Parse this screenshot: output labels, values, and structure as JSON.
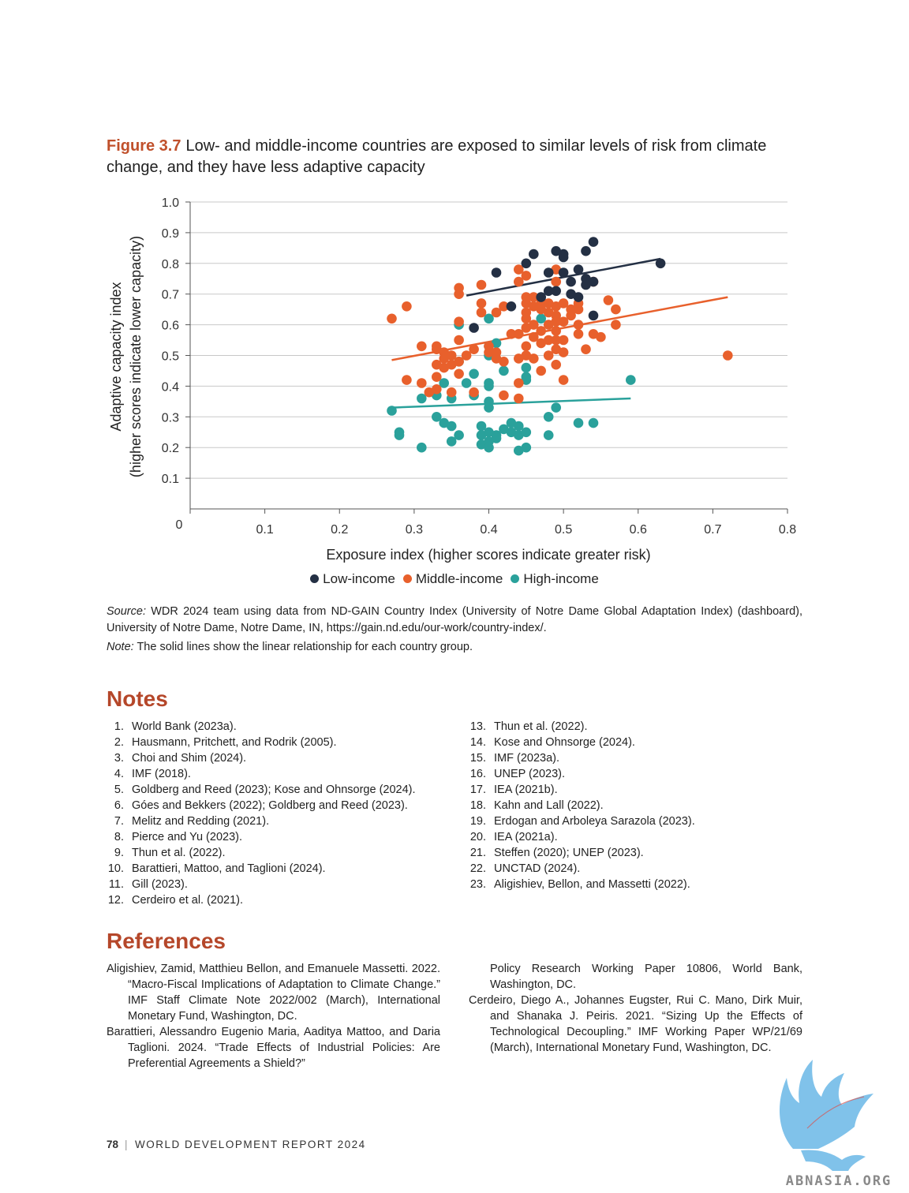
{
  "figure": {
    "label": "Figure 3.7",
    "title": "Low- and middle-income countries are exposed to similar levels of risk from climate change, and they have less adaptive capacity"
  },
  "chart_data": {
    "type": "scatter",
    "xlabel": "Exposure index (higher scores indicate greater risk)",
    "ylabel_line1": "Adaptive capacity index",
    "ylabel_line2": "(higher scores indicate lower capacity)",
    "xlim": [
      0,
      0.8
    ],
    "ylim": [
      0,
      1.0
    ],
    "x_ticks": [
      "0.1",
      "0.2",
      "0.3",
      "0.4",
      "0.5",
      "0.6",
      "0.7",
      "0.8"
    ],
    "y_ticks": [
      "0.1",
      "0.2",
      "0.3",
      "0.4",
      "0.5",
      "0.6",
      "0.7",
      "0.8",
      "0.9",
      "1.0"
    ],
    "origin_label": "0",
    "grid": "horizontal",
    "legend_position": "bottom",
    "series": [
      {
        "name": "Low-income",
        "color": "#243044",
        "trend": [
          [
            0.37,
            0.695
          ],
          [
            0.63,
            0.815
          ]
        ],
        "points": [
          [
            0.38,
            0.59
          ],
          [
            0.41,
            0.77
          ],
          [
            0.43,
            0.66
          ],
          [
            0.45,
            0.8
          ],
          [
            0.46,
            0.83
          ],
          [
            0.47,
            0.69
          ],
          [
            0.48,
            0.77
          ],
          [
            0.48,
            0.71
          ],
          [
            0.49,
            0.84
          ],
          [
            0.49,
            0.71
          ],
          [
            0.5,
            0.83
          ],
          [
            0.5,
            0.82
          ],
          [
            0.5,
            0.77
          ],
          [
            0.51,
            0.74
          ],
          [
            0.51,
            0.7
          ],
          [
            0.52,
            0.78
          ],
          [
            0.52,
            0.69
          ],
          [
            0.53,
            0.84
          ],
          [
            0.53,
            0.75
          ],
          [
            0.53,
            0.73
          ],
          [
            0.54,
            0.87
          ],
          [
            0.54,
            0.74
          ],
          [
            0.54,
            0.63
          ],
          [
            0.63,
            0.8
          ]
        ]
      },
      {
        "name": "Middle-income",
        "color": "#e8602c",
        "trend": [
          [
            0.27,
            0.485
          ],
          [
            0.72,
            0.69
          ]
        ],
        "points": [
          [
            0.27,
            0.62
          ],
          [
            0.29,
            0.66
          ],
          [
            0.29,
            0.42
          ],
          [
            0.31,
            0.41
          ],
          [
            0.31,
            0.53
          ],
          [
            0.32,
            0.38
          ],
          [
            0.33,
            0.53
          ],
          [
            0.33,
            0.52
          ],
          [
            0.33,
            0.47
          ],
          [
            0.33,
            0.43
          ],
          [
            0.33,
            0.39
          ],
          [
            0.34,
            0.51
          ],
          [
            0.34,
            0.49
          ],
          [
            0.34,
            0.46
          ],
          [
            0.35,
            0.5
          ],
          [
            0.35,
            0.47
          ],
          [
            0.35,
            0.38
          ],
          [
            0.36,
            0.72
          ],
          [
            0.36,
            0.7
          ],
          [
            0.36,
            0.61
          ],
          [
            0.36,
            0.55
          ],
          [
            0.36,
            0.48
          ],
          [
            0.36,
            0.44
          ],
          [
            0.37,
            0.5
          ],
          [
            0.38,
            0.52
          ],
          [
            0.38,
            0.38
          ],
          [
            0.39,
            0.73
          ],
          [
            0.39,
            0.67
          ],
          [
            0.39,
            0.64
          ],
          [
            0.4,
            0.53
          ],
          [
            0.4,
            0.51
          ],
          [
            0.41,
            0.64
          ],
          [
            0.41,
            0.51
          ],
          [
            0.41,
            0.49
          ],
          [
            0.42,
            0.66
          ],
          [
            0.42,
            0.48
          ],
          [
            0.42,
            0.37
          ],
          [
            0.43,
            0.57
          ],
          [
            0.44,
            0.78
          ],
          [
            0.44,
            0.74
          ],
          [
            0.44,
            0.57
          ],
          [
            0.44,
            0.49
          ],
          [
            0.44,
            0.41
          ],
          [
            0.44,
            0.36
          ],
          [
            0.45,
            0.76
          ],
          [
            0.45,
            0.69
          ],
          [
            0.45,
            0.67
          ],
          [
            0.45,
            0.64
          ],
          [
            0.45,
            0.62
          ],
          [
            0.45,
            0.59
          ],
          [
            0.45,
            0.53
          ],
          [
            0.45,
            0.5
          ],
          [
            0.46,
            0.69
          ],
          [
            0.46,
            0.66
          ],
          [
            0.46,
            0.6
          ],
          [
            0.46,
            0.56
          ],
          [
            0.46,
            0.49
          ],
          [
            0.47,
            0.67
          ],
          [
            0.47,
            0.65
          ],
          [
            0.47,
            0.58
          ],
          [
            0.47,
            0.54
          ],
          [
            0.47,
            0.45
          ],
          [
            0.48,
            0.67
          ],
          [
            0.48,
            0.64
          ],
          [
            0.48,
            0.6
          ],
          [
            0.48,
            0.55
          ],
          [
            0.48,
            0.5
          ],
          [
            0.49,
            0.78
          ],
          [
            0.49,
            0.74
          ],
          [
            0.49,
            0.66
          ],
          [
            0.49,
            0.63
          ],
          [
            0.49,
            0.61
          ],
          [
            0.49,
            0.58
          ],
          [
            0.49,
            0.55
          ],
          [
            0.49,
            0.52
          ],
          [
            0.49,
            0.47
          ],
          [
            0.5,
            0.67
          ],
          [
            0.5,
            0.61
          ],
          [
            0.5,
            0.55
          ],
          [
            0.5,
            0.51
          ],
          [
            0.5,
            0.42
          ],
          [
            0.51,
            0.65
          ],
          [
            0.51,
            0.63
          ],
          [
            0.52,
            0.67
          ],
          [
            0.52,
            0.65
          ],
          [
            0.52,
            0.6
          ],
          [
            0.52,
            0.57
          ],
          [
            0.53,
            0.52
          ],
          [
            0.54,
            0.74
          ],
          [
            0.54,
            0.57
          ],
          [
            0.55,
            0.56
          ],
          [
            0.56,
            0.68
          ],
          [
            0.57,
            0.65
          ],
          [
            0.57,
            0.6
          ],
          [
            0.72,
            0.5
          ]
        ]
      },
      {
        "name": "High-income",
        "color": "#2aa19b",
        "trend": [
          [
            0.27,
            0.33
          ],
          [
            0.59,
            0.36
          ]
        ],
        "points": [
          [
            0.27,
            0.32
          ],
          [
            0.28,
            0.25
          ],
          [
            0.28,
            0.24
          ],
          [
            0.31,
            0.2
          ],
          [
            0.31,
            0.36
          ],
          [
            0.33,
            0.37
          ],
          [
            0.33,
            0.3
          ],
          [
            0.34,
            0.41
          ],
          [
            0.34,
            0.28
          ],
          [
            0.35,
            0.36
          ],
          [
            0.35,
            0.27
          ],
          [
            0.35,
            0.22
          ],
          [
            0.36,
            0.6
          ],
          [
            0.36,
            0.48
          ],
          [
            0.36,
            0.24
          ],
          [
            0.37,
            0.41
          ],
          [
            0.38,
            0.44
          ],
          [
            0.38,
            0.37
          ],
          [
            0.39,
            0.27
          ],
          [
            0.39,
            0.24
          ],
          [
            0.39,
            0.21
          ],
          [
            0.4,
            0.62
          ],
          [
            0.4,
            0.53
          ],
          [
            0.4,
            0.5
          ],
          [
            0.4,
            0.41
          ],
          [
            0.4,
            0.4
          ],
          [
            0.4,
            0.35
          ],
          [
            0.4,
            0.33
          ],
          [
            0.4,
            0.25
          ],
          [
            0.4,
            0.22
          ],
          [
            0.4,
            0.2
          ],
          [
            0.41,
            0.54
          ],
          [
            0.41,
            0.24
          ],
          [
            0.41,
            0.23
          ],
          [
            0.42,
            0.45
          ],
          [
            0.42,
            0.26
          ],
          [
            0.43,
            0.28
          ],
          [
            0.43,
            0.25
          ],
          [
            0.44,
            0.27
          ],
          [
            0.44,
            0.24
          ],
          [
            0.44,
            0.19
          ],
          [
            0.45,
            0.46
          ],
          [
            0.45,
            0.43
          ],
          [
            0.45,
            0.42
          ],
          [
            0.45,
            0.25
          ],
          [
            0.45,
            0.2
          ],
          [
            0.47,
            0.62
          ],
          [
            0.48,
            0.3
          ],
          [
            0.48,
            0.24
          ],
          [
            0.49,
            0.33
          ],
          [
            0.52,
            0.28
          ],
          [
            0.54,
            0.28
          ],
          [
            0.59,
            0.42
          ]
        ]
      }
    ]
  },
  "source": {
    "label": "Source:",
    "text": "WDR 2024 team using data from ND-GAIN Country Index (University of Notre Dame Global Adaptation Index) (dashboard), University of Notre Dame, Notre Dame, IN, https://gain.nd.edu/our-work/country-index/."
  },
  "note": {
    "label": "Note:",
    "text": "The solid lines show the linear relationship for each country group."
  },
  "notes": {
    "heading": "Notes",
    "col1": [
      {
        "n": "1.",
        "t": "World Bank (2023a)."
      },
      {
        "n": "2.",
        "t": "Hausmann, Pritchett, and Rodrik (2005)."
      },
      {
        "n": "3.",
        "t": "Choi and Shim (2024)."
      },
      {
        "n": "4.",
        "t": "IMF (2018)."
      },
      {
        "n": "5.",
        "t": "Goldberg and Reed (2023); Kose and Ohnsorge (2024)."
      },
      {
        "n": "6.",
        "t": "Góes and Bekkers (2022); Goldberg and Reed (2023)."
      },
      {
        "n": "7.",
        "t": "Melitz and Redding (2021)."
      },
      {
        "n": "8.",
        "t": "Pierce and Yu (2023)."
      },
      {
        "n": "9.",
        "t": "Thun et al. (2022)."
      },
      {
        "n": "10.",
        "t": "Barattieri, Mattoo, and Taglioni (2024)."
      },
      {
        "n": "11.",
        "t": "Gill (2023)."
      },
      {
        "n": "12.",
        "t": "Cerdeiro et al. (2021)."
      }
    ],
    "col2": [
      {
        "n": "13.",
        "t": "Thun et al. (2022)."
      },
      {
        "n": "14.",
        "t": "Kose and Ohnsorge (2024)."
      },
      {
        "n": "15.",
        "t": "IMF (2023a)."
      },
      {
        "n": "16.",
        "t": "UNEP (2023)."
      },
      {
        "n": "17.",
        "t": "IEA (2021b)."
      },
      {
        "n": "18.",
        "t": "Kahn and Lall (2022)."
      },
      {
        "n": "19.",
        "t": "Erdogan and Arboleya Sarazola (2023)."
      },
      {
        "n": "20.",
        "t": "IEA (2021a)."
      },
      {
        "n": "21.",
        "t": "Steffen (2020); UNEP (2023)."
      },
      {
        "n": "22.",
        "t": "UNCTAD (2024)."
      },
      {
        "n": "23.",
        "t": "Aligishiev, Bellon, and Massetti (2022)."
      }
    ]
  },
  "references": {
    "heading": "References",
    "ref1": "Aligishiev, Zamid, Matthieu Bellon, and Emanuele Massetti. 2022. “Macro-Fiscal Implications of Adaptation to Climate Change.” IMF Staff Climate Note 2022/002 (March), International Monetary Fund, Washington, DC.",
    "ref2": "Barattieri, Alessandro Eugenio Maria, Aaditya Mattoo, and Daria Taglioni. 2024. “Trade Effects of Industrial Policies: Are Preferential Agreements a Shield?”",
    "ref2_cont": "Policy Research Working Paper 10806, World Bank, Washington, DC.",
    "ref3": "Cerdeiro, Diego A., Johannes Eugster, Rui C. Mano, Dirk Muir, and Shanaka J. Peiris. 2021. “Sizing Up the Effects of Technological Decoupling.” IMF Working Paper WP/21/69 (March), International Monetary Fund, Washington, DC."
  },
  "footer": {
    "page": "78",
    "title": "WORLD DEVELOPMENT REPORT 2024"
  },
  "watermark": {
    "text": "ABNASIA.ORG"
  }
}
